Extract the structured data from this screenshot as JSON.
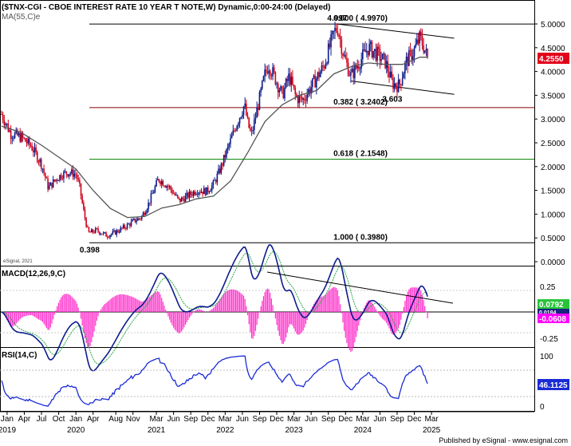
{
  "chart_data": [
    {
      "type": "candlestick",
      "title": "($TNX-CGI - CBOE INTEREST RATE 10 YEAR T NOTE,W) Dynamic,0:00-24:00 (Delayed)",
      "indicator_label": "MA(55,C)e",
      "ylim": [
        0,
        5.25
      ],
      "y_ticks": [
        "5.0000",
        "4.5000",
        "4.0000",
        "3.5000",
        "3.0000",
        "2.5000",
        "2.0000",
        "1.5000",
        "1.0000",
        "0.5000",
        "0.0000"
      ],
      "last_value": "4.2550",
      "close_path": [
        [
          2018.92,
          3.1
        ],
        [
          2019.05,
          2.7
        ],
        [
          2019.2,
          2.62
        ],
        [
          2019.35,
          2.43
        ],
        [
          2019.5,
          2.05
        ],
        [
          2019.6,
          1.55
        ],
        [
          2019.7,
          1.72
        ],
        [
          2019.8,
          1.84
        ],
        [
          2019.9,
          1.88
        ],
        [
          2020.0,
          1.84
        ],
        [
          2020.05,
          1.6
        ],
        [
          2020.12,
          1.0
        ],
        [
          2020.18,
          0.6
        ],
        [
          2020.3,
          0.66
        ],
        [
          2020.45,
          0.55
        ],
        [
          2020.55,
          0.6
        ],
        [
          2020.7,
          0.72
        ],
        [
          2020.85,
          0.86
        ],
        [
          2020.95,
          0.93
        ],
        [
          2021.05,
          1.2
        ],
        [
          2021.2,
          1.74
        ],
        [
          2021.35,
          1.58
        ],
        [
          2021.5,
          1.28
        ],
        [
          2021.6,
          1.36
        ],
        [
          2021.75,
          1.5
        ],
        [
          2021.9,
          1.48
        ],
        [
          2022.0,
          1.63
        ],
        [
          2022.1,
          1.95
        ],
        [
          2022.2,
          2.35
        ],
        [
          2022.35,
          2.95
        ],
        [
          2022.45,
          3.3
        ],
        [
          2022.5,
          2.9
        ],
        [
          2022.55,
          2.65
        ],
        [
          2022.65,
          3.3
        ],
        [
          2022.75,
          3.95
        ],
        [
          2022.8,
          4.15
        ],
        [
          2022.9,
          3.85
        ],
        [
          2023.0,
          3.5
        ],
        [
          2023.1,
          3.9
        ],
        [
          2023.2,
          3.45
        ],
        [
          2023.3,
          3.4
        ],
        [
          2023.45,
          3.75
        ],
        [
          2023.6,
          4.1
        ],
        [
          2023.75,
          4.8
        ],
        [
          2023.8,
          4.95
        ],
        [
          2023.9,
          4.3
        ],
        [
          2024.0,
          3.9
        ],
        [
          2024.1,
          4.15
        ],
        [
          2024.25,
          4.5
        ],
        [
          2024.35,
          4.4
        ],
        [
          2024.5,
          4.2
        ],
        [
          2024.6,
          3.75
        ],
        [
          2024.7,
          3.7
        ],
        [
          2024.8,
          4.2
        ],
        [
          2024.9,
          4.4
        ],
        [
          2025.0,
          4.7
        ],
        [
          2025.05,
          4.55
        ],
        [
          2025.12,
          4.25
        ]
      ],
      "ma_55": [
        [
          2018.92,
          2.85
        ],
        [
          2019.2,
          2.72
        ],
        [
          2019.5,
          2.45
        ],
        [
          2019.8,
          2.15
        ],
        [
          2020.0,
          1.95
        ],
        [
          2020.25,
          1.5
        ],
        [
          2020.5,
          1.12
        ],
        [
          2020.75,
          0.93
        ],
        [
          2021.0,
          0.95
        ],
        [
          2021.25,
          1.13
        ],
        [
          2021.5,
          1.2
        ],
        [
          2021.75,
          1.32
        ],
        [
          2022.0,
          1.38
        ],
        [
          2022.25,
          1.7
        ],
        [
          2022.5,
          2.3
        ],
        [
          2022.75,
          2.95
        ],
        [
          2023.0,
          3.3
        ],
        [
          2023.25,
          3.5
        ],
        [
          2023.5,
          3.6
        ],
        [
          2023.75,
          3.95
        ],
        [
          2024.0,
          4.1
        ],
        [
          2024.25,
          4.18
        ],
        [
          2024.5,
          4.15
        ],
        [
          2024.75,
          4.15
        ],
        [
          2025.0,
          4.3
        ],
        [
          2025.12,
          4.3
        ]
      ],
      "levels": [
        {
          "label": "0.000 ( 4.9970)",
          "value": 4.997,
          "color": "#000000"
        },
        {
          "label": "0.382 ( 3.2402)",
          "value": 3.2402,
          "color": "#8b0000"
        },
        {
          "label": "0.618 ( 2.1548)",
          "value": 2.1548,
          "color": "#008000"
        },
        {
          "label": "1.000 ( 0.3980)",
          "value": 0.398,
          "color": "#000000"
        }
      ],
      "annotations": [
        {
          "text": "4.997",
          "x": 2023.8,
          "y": 4.997
        },
        {
          "text": "3.603",
          "x": 2024.6,
          "y": 3.603
        },
        {
          "text": "0.398",
          "x": 2020.2,
          "y": 0.398
        }
      ],
      "trend_lines": [
        {
          "from": [
            2023.8,
            4.997
          ],
          "to": [
            2025.5,
            4.7
          ]
        },
        {
          "from": [
            2024.0,
            3.8
          ],
          "to": [
            2025.5,
            3.52
          ]
        }
      ],
      "watermark": "eSignal, 2021"
    },
    {
      "type": "line",
      "indicator_label": "MACD(12,26,9,C)",
      "y_ticks": [
        "0.25",
        "-0.25"
      ],
      "last_values": [
        "0.0792",
        "0.0184",
        "-0.0608"
      ],
      "ylim": [
        -0.35,
        0.45
      ]
    },
    {
      "type": "line",
      "indicator_label": "RSI(14,C)",
      "y_ticks": [
        "100",
        "0"
      ],
      "last_value": "46.1125",
      "ylim": [
        0,
        100
      ]
    }
  ],
  "x_axis": {
    "months": [
      "Jan",
      "Apr",
      "Jul",
      "Oct",
      "Jan",
      "Apr",
      "Aug",
      "Nov",
      "Mar",
      "Jun",
      "Sep",
      "Dec",
      "Mar",
      "Jun",
      "Sep",
      "Dec",
      "Mar",
      "Jun",
      "Sep",
      "Dec",
      "Mar",
      "Jun",
      "Sep",
      "Dec",
      "Mar"
    ],
    "years": [
      "2019",
      "2020",
      "2021",
      "2022",
      "2023",
      "2024",
      "2025"
    ]
  },
  "footer": "Published by eSignal - www.esignal.com"
}
